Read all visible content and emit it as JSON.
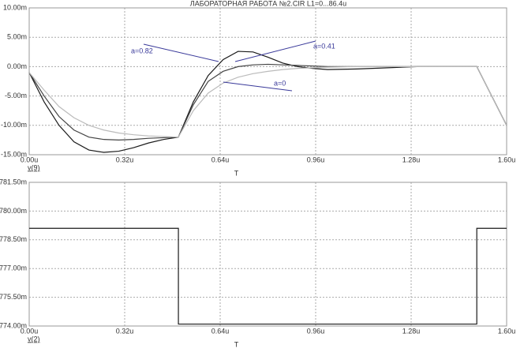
{
  "chart_data": [
    {
      "type": "line",
      "title": "ЛАБОРАТОРНАЯ РАБОТА №2.CIR L1=0...86.4u",
      "xlabel": "T",
      "ylabel": "v(9)",
      "grid": true,
      "xlim": [
        0,
        1.6
      ],
      "ylim": [
        -15,
        10
      ],
      "xticks": [
        {
          "value": 0,
          "label": "0.00u"
        },
        {
          "value": 0.32,
          "label": "0.32u"
        },
        {
          "value": 0.64,
          "label": "0.64u"
        },
        {
          "value": 0.96,
          "label": "0.96u"
        },
        {
          "value": 1.28,
          "label": "1.28u"
        },
        {
          "value": 1.6,
          "label": "1.60u"
        }
      ],
      "yticks": [
        {
          "value": 10,
          "label": "10.00m"
        },
        {
          "value": 5,
          "label": "5.00m"
        },
        {
          "value": 0,
          "label": "0.00m"
        },
        {
          "value": -5,
          "label": "-5.00m"
        },
        {
          "value": -10,
          "label": "-10.00m"
        },
        {
          "value": -15,
          "label": "-15.00m"
        }
      ],
      "x": [
        0,
        0.05,
        0.1,
        0.15,
        0.2,
        0.25,
        0.3,
        0.35,
        0.4,
        0.45,
        0.5,
        0.55,
        0.6,
        0.65,
        0.7,
        0.75,
        0.8,
        0.85,
        0.9,
        0.95,
        1.0,
        1.1,
        1.2,
        1.3,
        1.4,
        1.5,
        1.55,
        1.6
      ],
      "series": [
        {
          "name": "a=0.82",
          "color": "#1a1a1a",
          "values": [
            -1,
            -6,
            -10,
            -12.8,
            -14.2,
            -14.6,
            -14.4,
            -13.8,
            -13,
            -12.4,
            -12,
            -6,
            -1.5,
            1.2,
            2.6,
            2.5,
            1.6,
            0.6,
            0,
            -0.3,
            -0.5,
            -0.4,
            -0.2,
            0,
            0,
            0,
            -5,
            -10
          ]
        },
        {
          "name": "a=0.41",
          "color": "#444444",
          "values": [
            -1,
            -5,
            -8.5,
            -10.8,
            -12,
            -12.4,
            -12.5,
            -12.4,
            -12.2,
            -12.1,
            -12,
            -6.5,
            -2.5,
            -0.8,
            0,
            0.3,
            0.4,
            0.3,
            0.2,
            0.1,
            0,
            0,
            0,
            0,
            0,
            0,
            -5,
            -10
          ]
        },
        {
          "name": "a=0",
          "color": "#bbbbbb",
          "values": [
            -1,
            -4,
            -6.8,
            -8.7,
            -10,
            -10.8,
            -11.3,
            -11.6,
            -11.8,
            -11.9,
            -12,
            -7.5,
            -4.5,
            -2.8,
            -1.8,
            -1.2,
            -0.8,
            -0.5,
            -0.3,
            -0.2,
            -0.1,
            0,
            0,
            0,
            0,
            0,
            -5,
            -10
          ]
        }
      ]
    },
    {
      "type": "line",
      "xlabel": "T",
      "ylabel": "v(2)",
      "grid": true,
      "xlim": [
        0,
        1.6
      ],
      "ylim": [
        774,
        781.5
      ],
      "xticks": [
        {
          "value": 0,
          "label": "0.00u"
        },
        {
          "value": 0.32,
          "label": "0.32u"
        },
        {
          "value": 0.64,
          "label": "0.64u"
        },
        {
          "value": 0.96,
          "label": "0.96u"
        },
        {
          "value": 1.28,
          "label": "1.28u"
        },
        {
          "value": 1.6,
          "label": "1.60u"
        }
      ],
      "yticks": [
        {
          "value": 781.5,
          "label": "781.50m"
        },
        {
          "value": 780,
          "label": "780.00m"
        },
        {
          "value": 778.5,
          "label": "778.50m"
        },
        {
          "value": 777,
          "label": "777.00m"
        },
        {
          "value": 775.5,
          "label": "775.50m"
        },
        {
          "value": 774,
          "label": "774.00m"
        }
      ],
      "x": [
        0,
        0.5,
        0.5,
        1.5,
        1.5,
        1.6
      ],
      "series": [
        {
          "color": "#1a1a1a",
          "values": [
            779.1,
            779.1,
            774.1,
            774.1,
            779.1,
            779.1
          ]
        }
      ]
    }
  ]
}
